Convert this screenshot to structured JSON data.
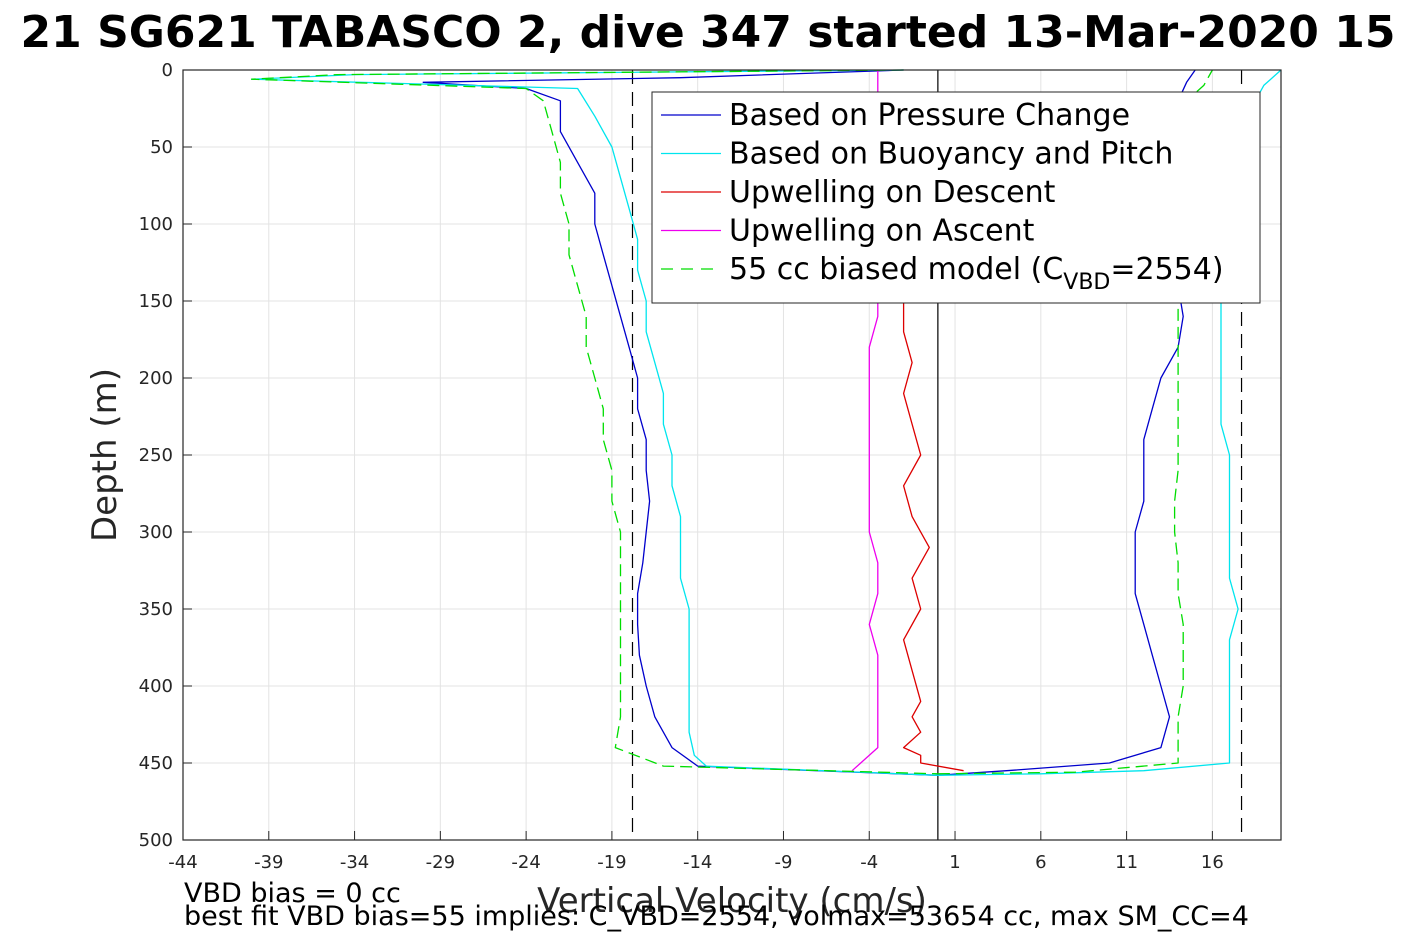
{
  "chart_data": {
    "type": "line",
    "title": "21 SG621 TABASCO 2, dive 347 started 13-Mar-2020 15",
    "xlabel": "Vertical Velocity (cm/s)",
    "ylabel": "Depth (m)",
    "xlim": [
      -44,
      20
    ],
    "ylim": [
      0,
      500
    ],
    "y_reversed": true,
    "grid": true,
    "legend_position": "top-right",
    "x_ticks": [
      "-44",
      "-39",
      "-34",
      "-29",
      "-24",
      "-19",
      "-14",
      "-9",
      "-4",
      "1",
      "6",
      "11",
      "16"
    ],
    "y_ticks": [
      "0",
      "50",
      "100",
      "150",
      "200",
      "250",
      "300",
      "350",
      "400",
      "450",
      "500"
    ],
    "reference_lines": [
      {
        "kind": "solid",
        "x": 0
      },
      {
        "kind": "dashed",
        "x": -17.8
      },
      {
        "kind": "dashed",
        "x": 17.7
      }
    ],
    "legend": [
      {
        "text": "Based on Pressure Change",
        "color": "#0000cc",
        "dash": "solid"
      },
      {
        "text": "Based on Buoyancy and Pitch",
        "color": "#00e5ee",
        "dash": "solid"
      },
      {
        "text": "Upwelling on Descent",
        "color": "#dd0000",
        "dash": "solid"
      },
      {
        "text": "Upwelling on Ascent",
        "color": "#ee00ee",
        "dash": "solid"
      },
      {
        "text": "55 cc biased model (C",
        "sub": "VBD",
        "after": "=2554)",
        "color": "#00dd00",
        "dash": "dashed"
      }
    ],
    "series": [
      {
        "name": "Based on Pressure Change",
        "color": "#0000cc",
        "phase": "descent",
        "x": [
          -2,
          -15,
          -30,
          -24,
          -22,
          -22,
          -21,
          -20,
          -20,
          -19.5,
          -19,
          -18.5,
          -18,
          -17.5,
          -17.5,
          -17,
          -17,
          -16.8,
          -17,
          -17.2,
          -17.5,
          -17.5,
          -17.4,
          -17,
          -16.5,
          -15.5,
          -14,
          0
        ],
        "y": [
          0,
          5,
          8,
          12,
          20,
          40,
          60,
          80,
          100,
          120,
          140,
          160,
          180,
          200,
          220,
          240,
          260,
          280,
          300,
          320,
          340,
          360,
          380,
          400,
          420,
          440,
          452,
          458
        ]
      },
      {
        "name": "Based on Pressure Change",
        "color": "#0000cc",
        "phase": "ascent",
        "x": [
          0,
          4,
          10,
          13,
          13.5,
          13,
          12.5,
          12,
          11.5,
          11.5,
          11.5,
          12,
          12,
          12,
          12.5,
          13,
          14,
          14.3,
          14,
          14,
          14,
          14,
          14,
          14,
          14,
          14.5,
          15
        ],
        "y": [
          458,
          455,
          450,
          440,
          420,
          400,
          380,
          360,
          340,
          320,
          300,
          280,
          260,
          240,
          220,
          200,
          180,
          160,
          140,
          120,
          100,
          80,
          60,
          40,
          20,
          8,
          0
        ]
      },
      {
        "name": "Based on Buoyancy and Pitch",
        "color": "#00e5ee",
        "phase": "descent",
        "x": [
          -2,
          -34,
          -40,
          -21,
          -20,
          -19,
          -18.5,
          -18,
          -17.5,
          -17.5,
          -17,
          -17,
          -16.5,
          -16,
          -16,
          -15.5,
          -15.5,
          -15,
          -15,
          -15,
          -14.5,
          -14.5,
          -14.5,
          -14.5,
          -14.5,
          -14.2,
          -13.5,
          0
        ],
        "y": [
          0,
          3,
          6,
          12,
          30,
          50,
          70,
          90,
          110,
          130,
          150,
          170,
          190,
          210,
          230,
          250,
          270,
          290,
          310,
          330,
          350,
          370,
          390,
          410,
          430,
          445,
          452,
          458
        ]
      },
      {
        "name": "Based on Buoyancy and Pitch",
        "color": "#00e5ee",
        "phase": "ascent",
        "x": [
          0,
          6,
          12,
          17,
          17,
          17,
          17,
          17,
          17.5,
          17,
          17,
          17,
          17,
          17,
          16.5,
          16.5,
          16.5,
          16.5,
          16.5,
          16.5,
          17,
          17,
          18,
          18.5,
          19,
          20
        ],
        "y": [
          458,
          457,
          455,
          450,
          430,
          410,
          390,
          370,
          350,
          330,
          310,
          290,
          270,
          250,
          230,
          210,
          190,
          170,
          150,
          120,
          90,
          60,
          40,
          20,
          10,
          0
        ]
      },
      {
        "name": "Upwelling on Descent",
        "color": "#dd0000",
        "phase": "descent",
        "x": [
          -2,
          -2,
          -1.5,
          -2,
          -1.5,
          -1,
          -2,
          -1.5,
          -0.5,
          -1.5,
          -1,
          -2,
          -1.5,
          -1,
          -1.5,
          -1,
          -2,
          -1,
          -1,
          1.5
        ],
        "y": [
          150,
          170,
          190,
          210,
          230,
          250,
          270,
          290,
          310,
          330,
          350,
          370,
          390,
          410,
          420,
          430,
          440,
          445,
          450,
          455
        ]
      },
      {
        "name": "Upwelling on Ascent",
        "color": "#ee00ee",
        "phase": "ascent",
        "x": [
          -5,
          -4.5,
          -3.5,
          -3.5,
          -3.5,
          -3.5,
          -4,
          -3.5,
          -3.5,
          -4,
          -4,
          -4,
          -4,
          -4,
          -4,
          -4,
          -3.5,
          -3.5,
          -3.5,
          -3.5
        ],
        "y": [
          455,
          450,
          440,
          420,
          400,
          380,
          360,
          340,
          320,
          300,
          280,
          260,
          240,
          220,
          200,
          180,
          160,
          150,
          140,
          0
        ]
      },
      {
        "name": "55 cc biased model (C",
        "color": "#00dd00",
        "dash": "dashed",
        "phase": "descent",
        "x": [
          -2,
          -35,
          -40,
          -24,
          -23,
          -22.5,
          -22,
          -22,
          -21.5,
          -21.5,
          -21,
          -20.5,
          -20.5,
          -20,
          -19.5,
          -19.5,
          -19,
          -19,
          -18.5,
          -18.5,
          -18.5,
          -18.5,
          -18.5,
          -18.5,
          -18.5,
          -18.8,
          -16,
          0
        ],
        "y": [
          0,
          3,
          6,
          12,
          20,
          40,
          60,
          80,
          100,
          120,
          140,
          160,
          180,
          200,
          220,
          240,
          260,
          280,
          300,
          320,
          340,
          360,
          380,
          400,
          420,
          440,
          452,
          457
        ]
      },
      {
        "name": "55 cc biased model (C",
        "color": "#00dd00",
        "dash": "dashed",
        "phase": "ascent",
        "x": [
          0,
          8,
          14,
          14,
          14,
          14.3,
          14.3,
          14.3,
          14,
          14,
          13.8,
          13.8,
          14,
          14,
          14,
          14,
          14,
          14,
          14,
          14.5,
          15.5,
          16
        ],
        "y": [
          457,
          456,
          450,
          440,
          420,
          400,
          380,
          360,
          340,
          320,
          300,
          280,
          260,
          240,
          220,
          200,
          180,
          160,
          140,
          20,
          10,
          0
        ]
      }
    ]
  },
  "footer": {
    "line1": "VBD bias = 0 cc",
    "line2": "best fit VBD bias=55 implies: C_VBD=2554, volmax=53654 cc, max SM_CC=4"
  }
}
